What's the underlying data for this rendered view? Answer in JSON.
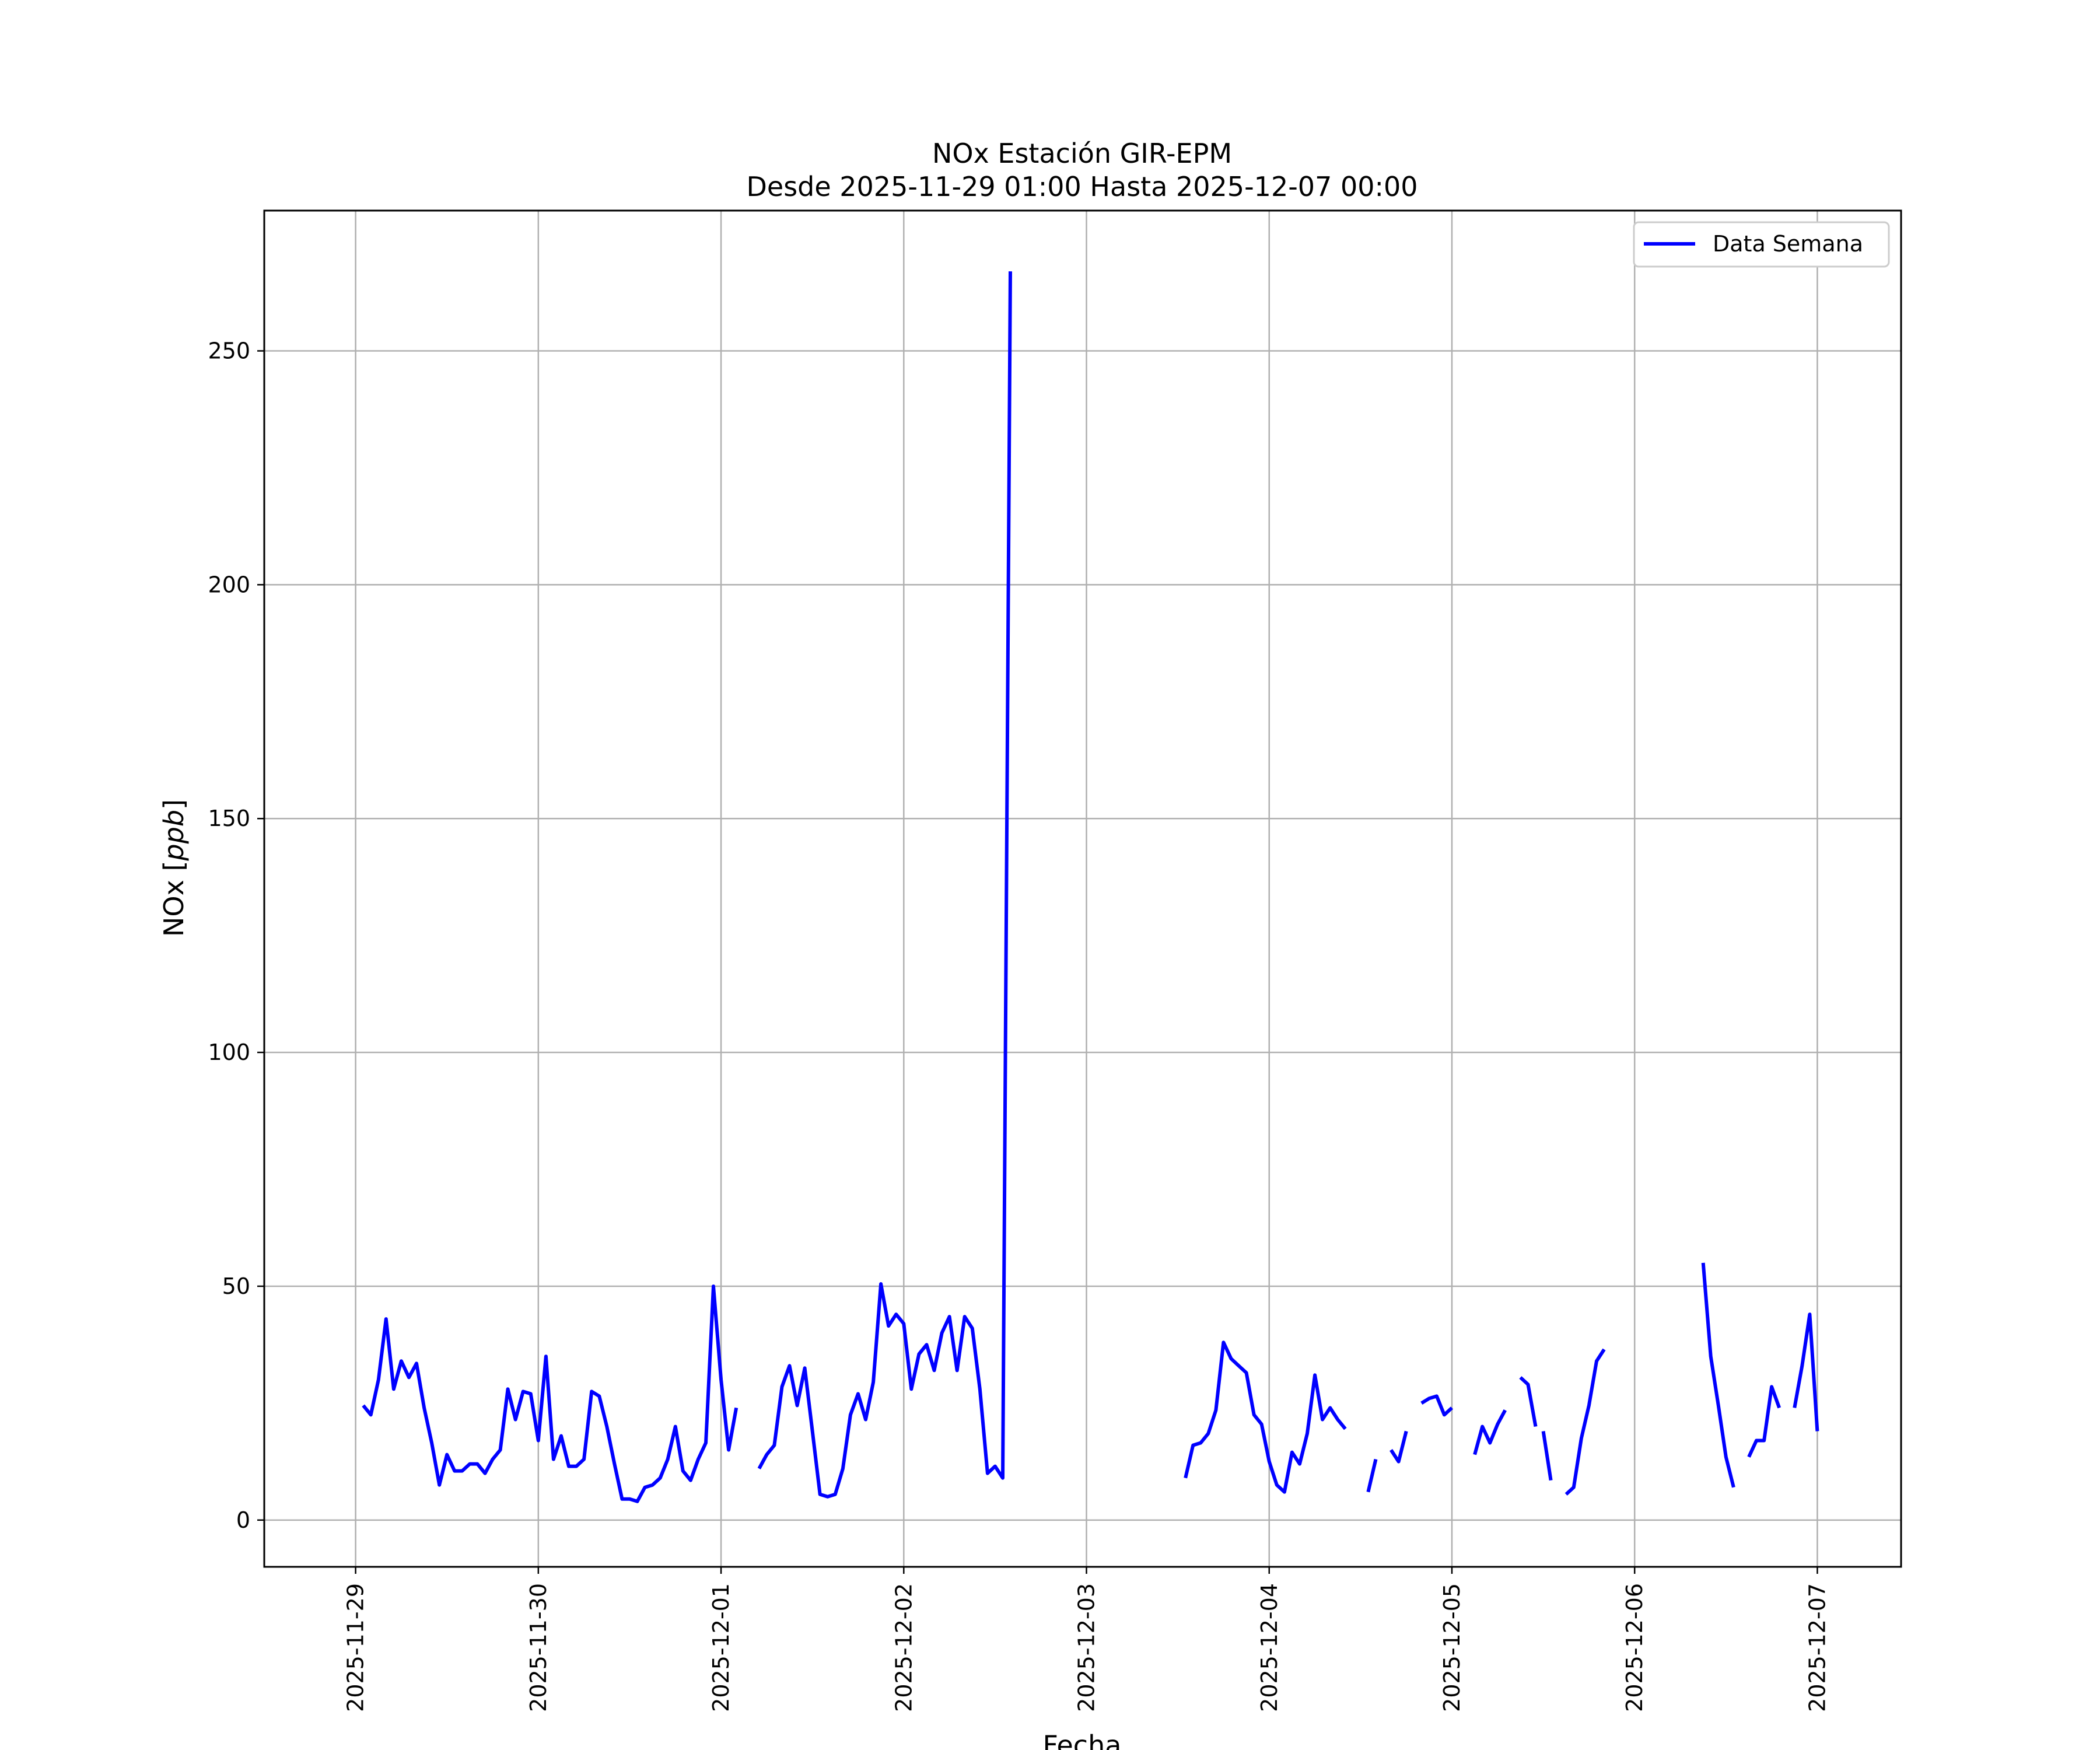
{
  "chart_data": {
    "type": "line",
    "title": "NOx Estación GIR-EPM",
    "subtitle": "Desde 2025-11-29 01:00 Hasta 2025-12-07 00:00",
    "xlabel": "Fecha",
    "ylabel_prefix": "NOx [",
    "ylabel_unit": "ppb",
    "ylabel_suffix": "]",
    "xlim": [
      "2025-11-28 12:00",
      "2025-12-07 11:00"
    ],
    "ylim": [
      -10,
      280
    ],
    "x_ticks": [
      "2025-11-29",
      "2025-11-30",
      "2025-12-01",
      "2025-12-02",
      "2025-12-03",
      "2025-12-04",
      "2025-12-05",
      "2025-12-06",
      "2025-12-07"
    ],
    "y_ticks": [
      0,
      50,
      100,
      150,
      200,
      250
    ],
    "grid": true,
    "legend_position": "top-right",
    "color": "#0000ff",
    "series": [
      {
        "name": "Data Semana",
        "segments": [
          {
            "start": "2025-11-29 01:00",
            "values": [
              24.5,
              22.5,
              30,
              43,
              28,
              34,
              30.5,
              33.5,
              24,
              16.5,
              7.5,
              14,
              10.5,
              10.5,
              12,
              12,
              10,
              13,
              15,
              28,
              21.5,
              27.5,
              27,
              17,
              35,
              13,
              18,
              11.5,
              11.5,
              13,
              27.5,
              26.5,
              20,
              12,
              4.5,
              4.5,
              4,
              7,
              7.5,
              9,
              13,
              20,
              10.5,
              8.5,
              13,
              16.5,
              50,
              30,
              15,
              24
            ]
          },
          {
            "start": "2025-12-01 05:00",
            "values": [
              11,
              14,
              16,
              28.5,
              33,
              24.5,
              32.5,
              19,
              5.5,
              5,
              5.5,
              11,
              22.5,
              27,
              21.5,
              29.5,
              50.5,
              41.5,
              44,
              42,
              28,
              35.5,
              37.5,
              32,
              40,
              43.5,
              32,
              43.5,
              41,
              28,
              10,
              11.5,
              9,
              267
            ]
          },
          {
            "start": "2025-12-03 13:00",
            "values": [
              9,
              16,
              16.5,
              18.5,
              23.5,
              38,
              34.5,
              33,
              31.5,
              22.5,
              20.5,
              12.5,
              7.5,
              6,
              14.5,
              12,
              18.5,
              31,
              21.5,
              24,
              21.5,
              19.5
            ]
          },
          {
            "start": "2025-12-04 13:00",
            "values": [
              6,
              13
            ]
          },
          {
            "start": "2025-12-04 16:00",
            "values": [
              15,
              12.5,
              19
            ]
          },
          {
            "start": "2025-12-04 20:00",
            "values": [
              25,
              26,
              26.5,
              22.5,
              24
            ]
          },
          {
            "start": "2025-12-05 03:00",
            "values": [
              14,
              20,
              16.5,
              20.5,
              23.5
            ]
          },
          {
            "start": "2025-12-05 09:00",
            "values": [
              30.5,
              29,
              20
            ]
          },
          {
            "start": "2025-12-05 12:00",
            "values": [
              19,
              8.5
            ]
          },
          {
            "start": "2025-12-05 15:00",
            "values": [
              5.5,
              7,
              17.5,
              24.5,
              34,
              36.5
            ]
          },
          {
            "start": "2025-12-06 09:00",
            "values": [
              55,
              35,
              24.5,
              13.5,
              7
            ]
          },
          {
            "start": "2025-12-06 15:00",
            "values": [
              13.5,
              17,
              17,
              28.5,
              24
            ]
          },
          {
            "start": "2025-12-06 21:00",
            "values": [
              24,
              33,
              44,
              19
            ]
          }
        ]
      }
    ]
  }
}
